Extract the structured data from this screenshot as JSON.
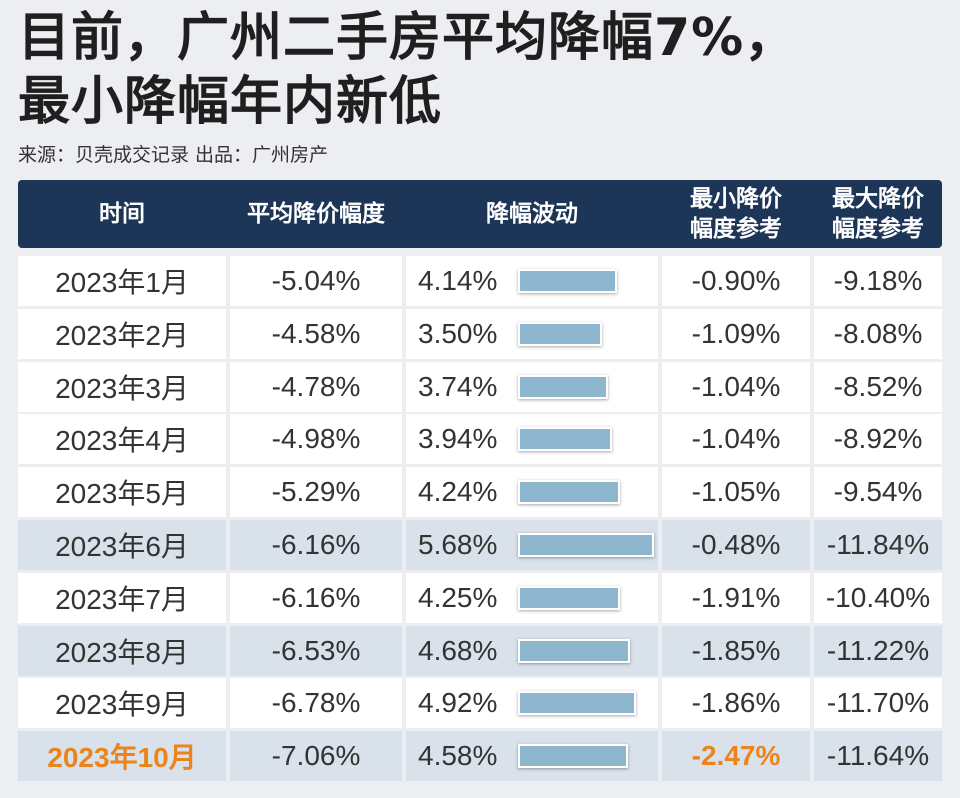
{
  "title_line1": "目前，广州二手房平均降幅7%，",
  "title_line2": "最小降幅年内新低",
  "source": "来源：贝壳成交记录  出品：广州房产",
  "colors": {
    "header_bg": "#1d3557",
    "bar": "#8fb6cf",
    "highlight": "#e9851c",
    "shaded_row": "#d9e1ea"
  },
  "chart_data": {
    "type": "table",
    "title": "目前，广州二手房平均降幅7%，最小降幅年内新低",
    "columns": [
      "时间",
      "平均降价幅度",
      "降幅波动",
      "最小降价\n幅度参考",
      "最大降价\n幅度参考"
    ],
    "rows": [
      {
        "month": "2023年1月",
        "avg": "-5.04%",
        "fluct": "4.14%",
        "fluct_value": 4.14,
        "min": "-0.90%",
        "max": "-9.18%",
        "shaded": false,
        "highlight": false
      },
      {
        "month": "2023年2月",
        "avg": "-4.58%",
        "fluct": "3.50%",
        "fluct_value": 3.5,
        "min": "-1.09%",
        "max": "-8.08%",
        "shaded": false,
        "highlight": false
      },
      {
        "month": "2023年3月",
        "avg": "-4.78%",
        "fluct": "3.74%",
        "fluct_value": 3.74,
        "min": "-1.04%",
        "max": "-8.52%",
        "shaded": false,
        "highlight": false
      },
      {
        "month": "2023年4月",
        "avg": "-4.98%",
        "fluct": "3.94%",
        "fluct_value": 3.94,
        "min": "-1.04%",
        "max": "-8.92%",
        "shaded": false,
        "highlight": false
      },
      {
        "month": "2023年5月",
        "avg": "-5.29%",
        "fluct": "4.24%",
        "fluct_value": 4.24,
        "min": "-1.05%",
        "max": "-9.54%",
        "shaded": false,
        "highlight": false
      },
      {
        "month": "2023年6月",
        "avg": "-6.16%",
        "fluct": "5.68%",
        "fluct_value": 5.68,
        "min": "-0.48%",
        "max": "-11.84%",
        "shaded": true,
        "highlight": false
      },
      {
        "month": "2023年7月",
        "avg": "-6.16%",
        "fluct": "4.25%",
        "fluct_value": 4.25,
        "min": "-1.91%",
        "max": "-10.40%",
        "shaded": false,
        "highlight": false
      },
      {
        "month": "2023年8月",
        "avg": "-6.53%",
        "fluct": "4.68%",
        "fluct_value": 4.68,
        "min": "-1.85%",
        "max": "-11.22%",
        "shaded": true,
        "highlight": false
      },
      {
        "month": "2023年9月",
        "avg": "-6.78%",
        "fluct": "4.92%",
        "fluct_value": 4.92,
        "min": "-1.86%",
        "max": "-11.70%",
        "shaded": false,
        "highlight": false
      },
      {
        "month": "2023年10月",
        "avg": "-7.06%",
        "fluct": "4.58%",
        "fluct_value": 4.58,
        "min": "-2.47%",
        "max": "-11.64%",
        "shaded": true,
        "highlight": true
      }
    ],
    "bar_max_value": 5.68
  }
}
